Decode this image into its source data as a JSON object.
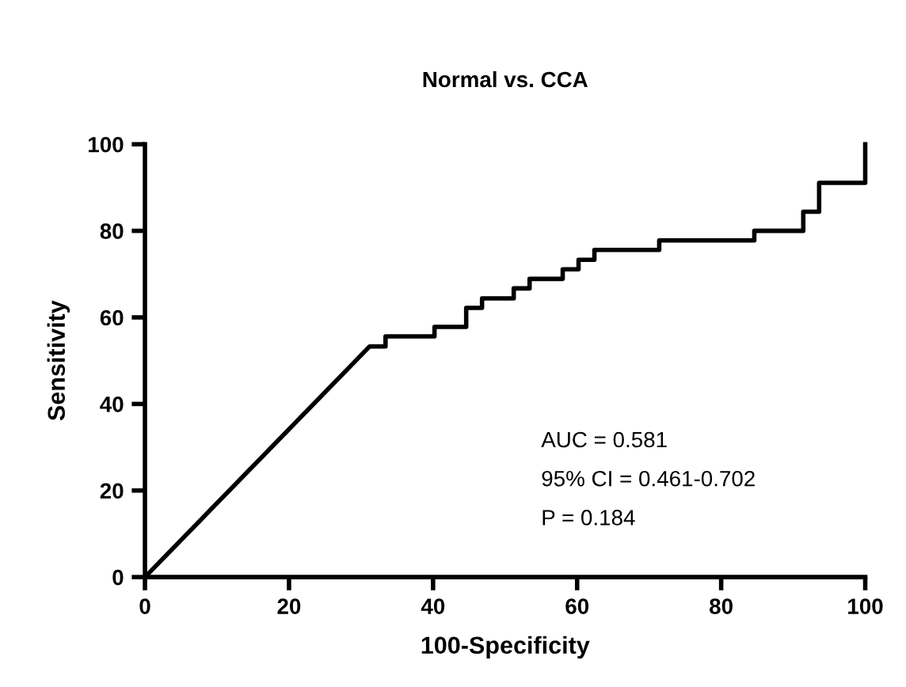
{
  "chart_data": {
    "type": "line",
    "title": "Normal vs. CCA",
    "xlabel": "100-Specificity",
    "ylabel": "Sensitivity",
    "series": [
      {
        "color": "#000000",
        "x": [
          0,
          31.2,
          33.4,
          33.4,
          40.2,
          40.2,
          44.6,
          44.6,
          46.8,
          46.8,
          51.2,
          51.2,
          53.4,
          53.4,
          58,
          58,
          60.2,
          60.2,
          62.4,
          62.4,
          71.4,
          71.4,
          84.6,
          84.6,
          91.4,
          91.4,
          93.6,
          93.6,
          100,
          100
        ],
        "values": [
          0,
          53.3,
          53.3,
          55.6,
          55.6,
          57.8,
          57.8,
          62.2,
          62.2,
          64.4,
          64.4,
          66.7,
          66.7,
          68.9,
          68.9,
          71.1,
          71.1,
          73.3,
          73.3,
          75.6,
          75.6,
          77.8,
          77.8,
          80,
          80,
          84.4,
          84.4,
          91.1,
          91.1,
          100
        ]
      }
    ],
    "xlim": [
      0,
      100
    ],
    "ylim": [
      0,
      100
    ],
    "xticks": [
      0,
      20,
      40,
      60,
      80,
      100
    ],
    "yticks": [
      0,
      20,
      40,
      60,
      80,
      100
    ],
    "grid": false,
    "legend": false,
    "marker": "none",
    "line_style": "solid",
    "annotations": [
      "AUC = 0.581",
      "95% CI = 0.461-0.702",
      "P = 0.184"
    ]
  }
}
